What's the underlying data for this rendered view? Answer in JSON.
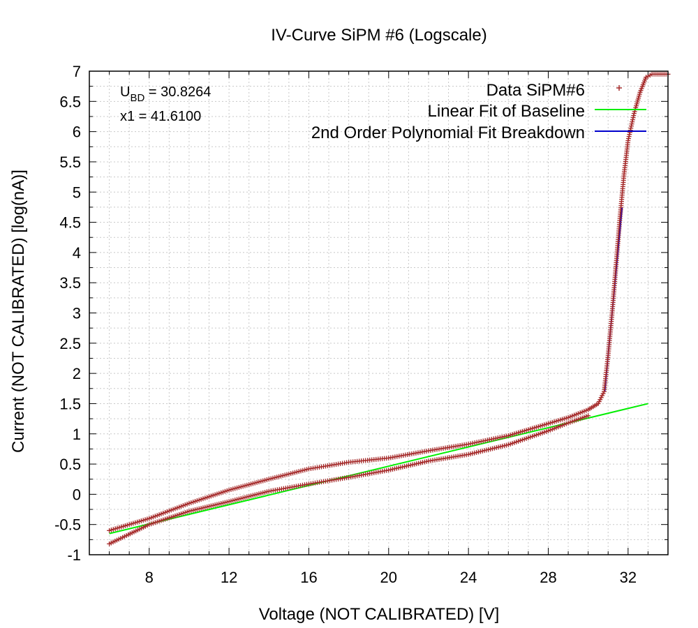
{
  "chart_data": {
    "type": "scatter",
    "title": "IV-Curve SiPM #6 (Logscale)",
    "xlabel": "Voltage (NOT CALIBRATED) [V]",
    "ylabel": "Current (NOT CALIBRATED) [log(nA)]",
    "xlim": [
      5,
      34
    ],
    "ylim": [
      -1,
      7
    ],
    "xticks": [
      8,
      12,
      16,
      20,
      24,
      28,
      32
    ],
    "yticks": [
      -1,
      -0.5,
      0,
      0.5,
      1,
      1.5,
      2,
      2.5,
      3,
      3.5,
      4,
      4.5,
      5,
      5.5,
      6,
      6.5,
      7
    ],
    "grid": true,
    "legend_position": "top-right",
    "annotations": [
      {
        "main": "U",
        "sub": "BD",
        "rest": " = 30.8264"
      },
      {
        "main": "x1 = 41.6100",
        "sub": "",
        "rest": ""
      }
    ],
    "series": [
      {
        "name": "Data SiPM#6",
        "marker": "plus",
        "color": "#a52a2a",
        "branches": [
          {
            "x": [
              6,
              8,
              10,
              12,
              14,
              16,
              18,
              20,
              22,
              24,
              26,
              28,
              29,
              30,
              30.5,
              30.8,
              31.0,
              31.2,
              31.4,
              31.6,
              31.8,
              32.0,
              32.3,
              32.6,
              32.9,
              33.2,
              34.0
            ],
            "y": [
              -0.6,
              -0.4,
              -0.15,
              0.07,
              0.25,
              0.42,
              0.53,
              0.6,
              0.72,
              0.83,
              0.97,
              1.17,
              1.27,
              1.4,
              1.5,
              1.7,
              2.3,
              3.0,
              3.8,
              4.6,
              5.3,
              5.85,
              6.3,
              6.65,
              6.9,
              6.95,
              6.95
            ]
          },
          {
            "x": [
              6,
              8,
              10,
              12,
              14,
              16,
              18,
              20,
              22,
              24,
              26,
              28,
              29,
              30
            ],
            "y": [
              -0.82,
              -0.5,
              -0.28,
              -0.12,
              0.05,
              0.17,
              0.28,
              0.4,
              0.55,
              0.66,
              0.82,
              1.05,
              1.18,
              1.3
            ]
          }
        ]
      },
      {
        "name": "Linear Fit of Baseline",
        "color": "#00ee00",
        "x": [
          6,
          33
        ],
        "y": [
          -0.65,
          1.5
        ]
      },
      {
        "name": "2nd Order Polynomial Fit Breakdown",
        "color": "#0000cc",
        "x": [
          30.83,
          31.0,
          31.2,
          31.4,
          31.6,
          31.7
        ],
        "y": [
          1.7,
          2.3,
          3.0,
          3.7,
          4.4,
          4.75
        ]
      }
    ]
  }
}
